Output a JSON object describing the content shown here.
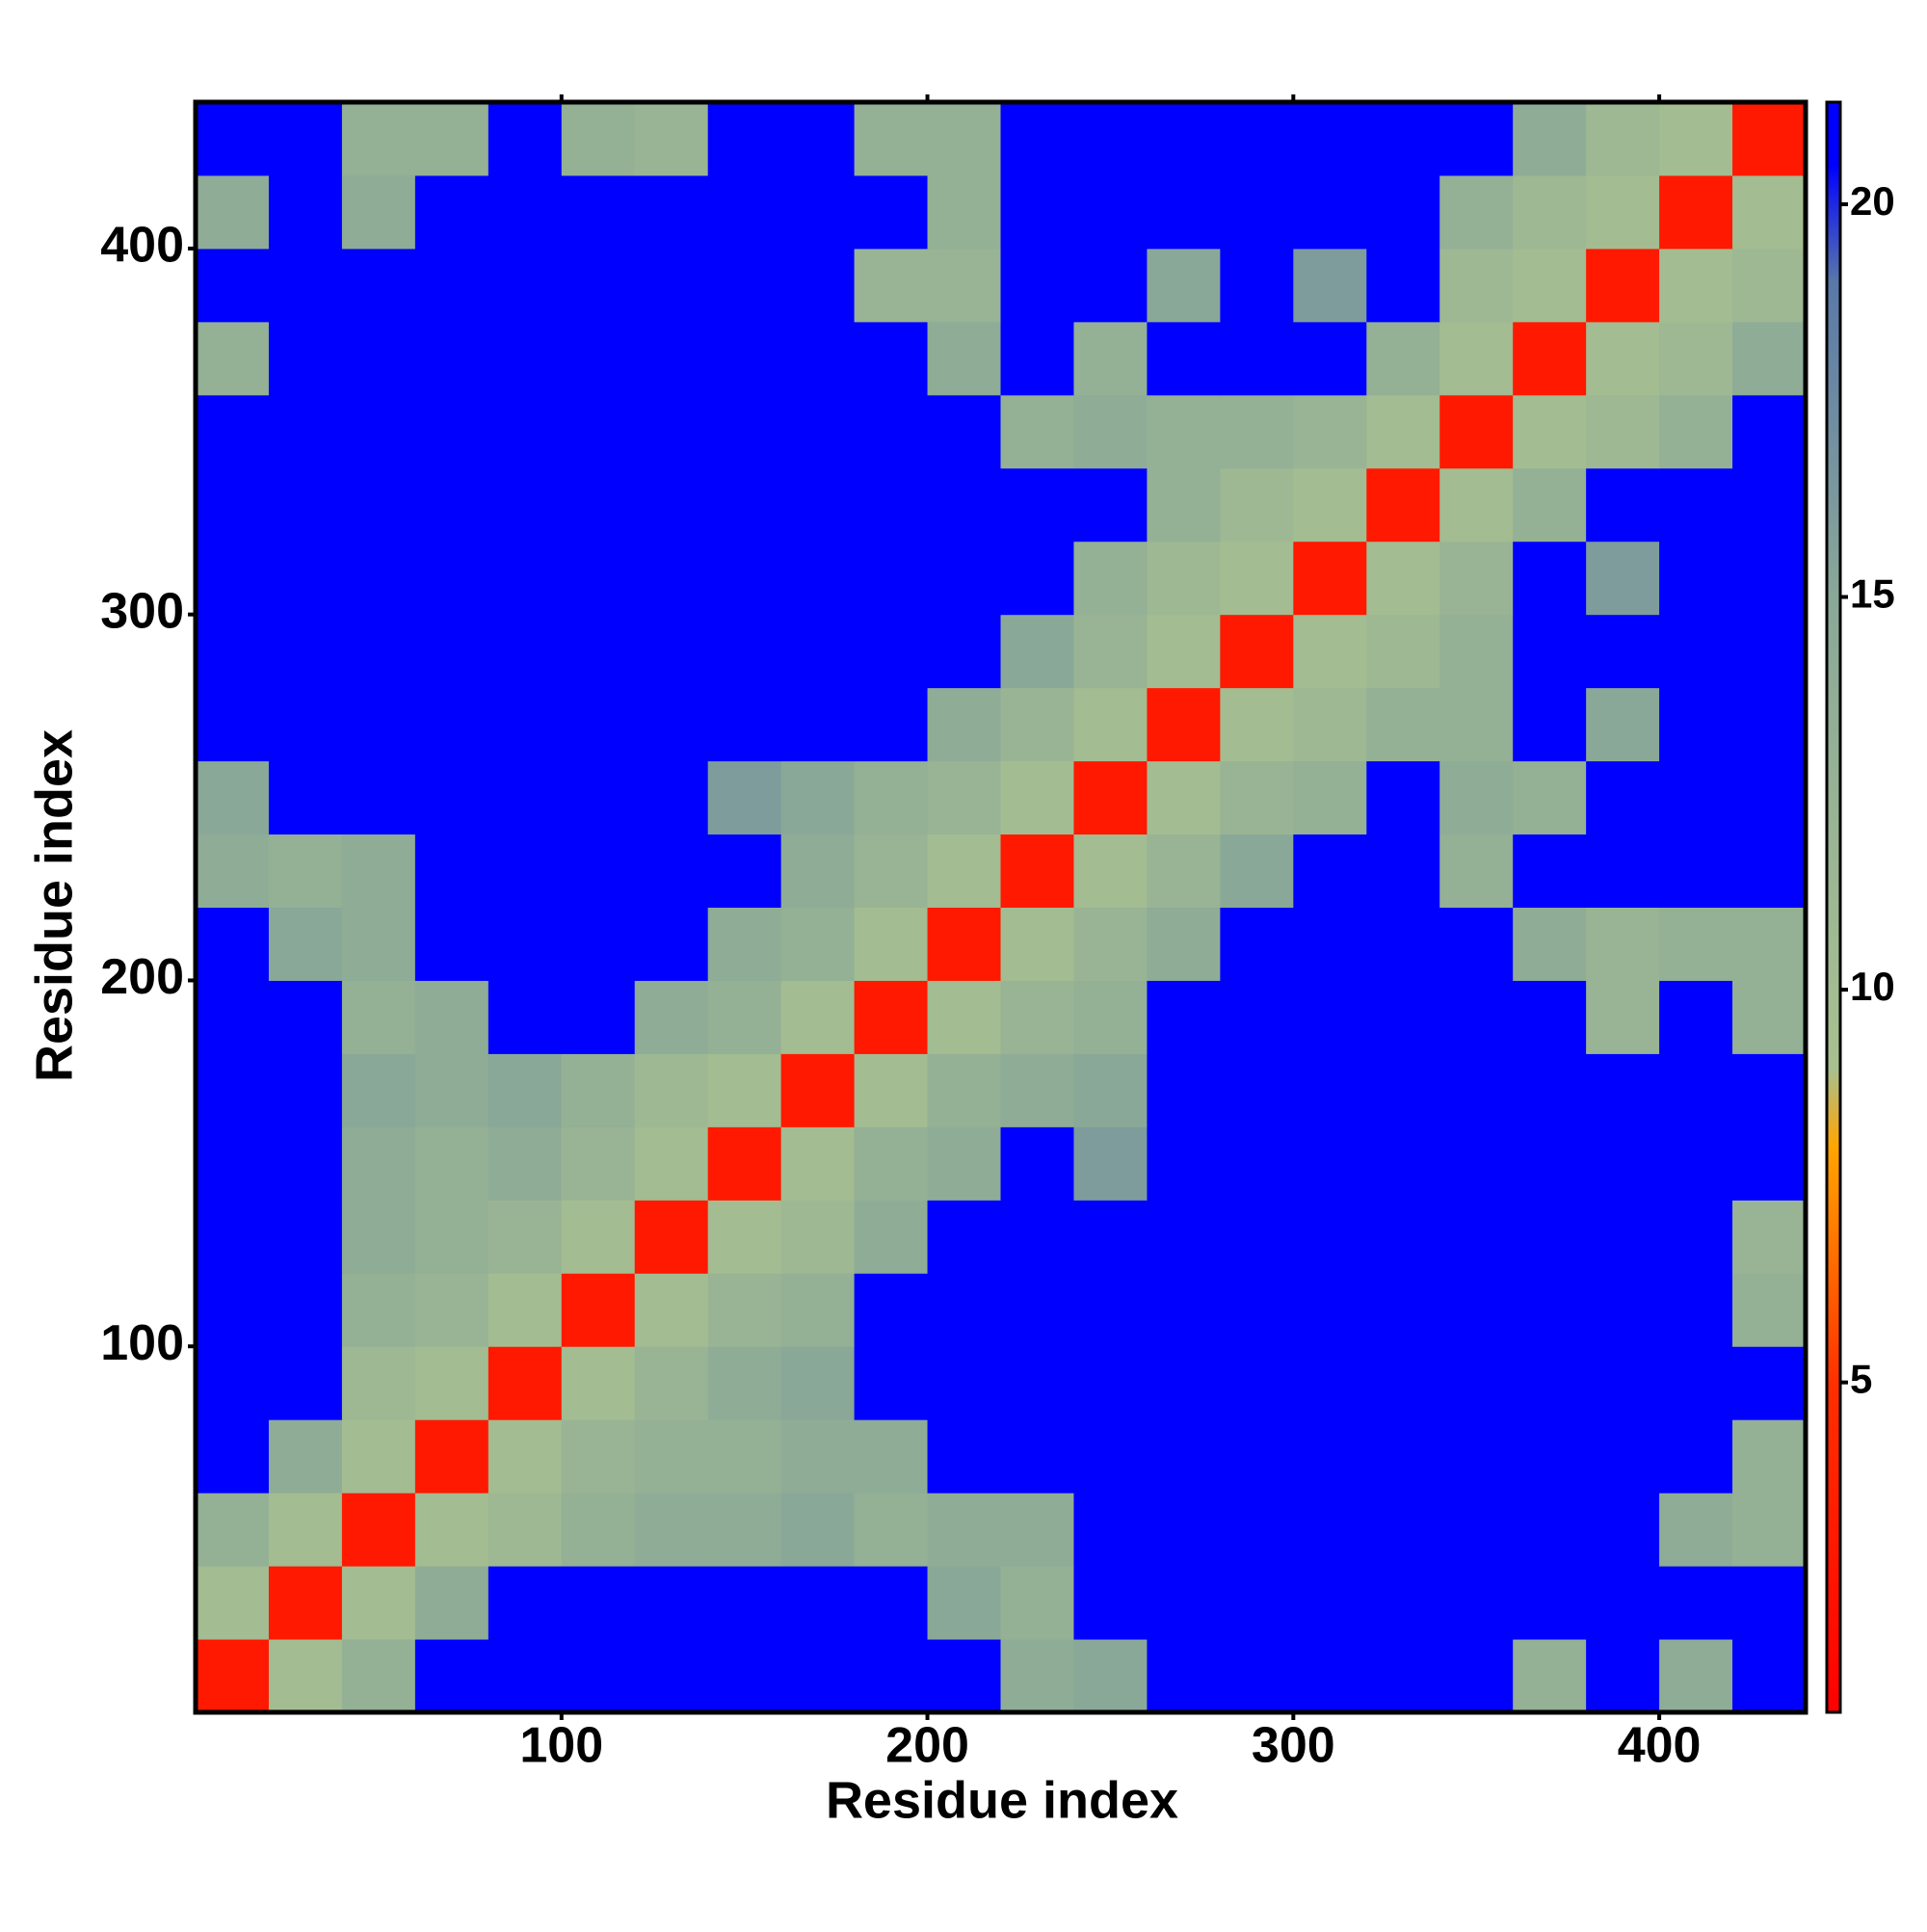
{
  "chart_data": {
    "type": "heatmap",
    "x_label": "Residue index",
    "y_label": "Residue index",
    "x": [
      10,
      30,
      50,
      70,
      90,
      110,
      130,
      150,
      170,
      190,
      210,
      230,
      250,
      270,
      290,
      310,
      330,
      350,
      370,
      390,
      410,
      430
    ],
    "y": [
      10,
      30,
      50,
      70,
      90,
      110,
      130,
      150,
      170,
      190,
      210,
      230,
      250,
      270,
      290,
      310,
      330,
      350,
      370,
      390,
      410,
      430
    ],
    "values": [
      [
        3,
        10,
        13,
        21,
        21,
        21,
        21,
        21,
        21,
        21,
        21,
        14,
        15,
        21,
        21,
        21,
        21,
        21,
        13,
        21,
        14,
        21
      ],
      [
        10,
        3,
        10,
        14,
        21,
        21,
        21,
        21,
        21,
        21,
        15,
        13,
        21,
        21,
        21,
        21,
        21,
        21,
        21,
        21,
        21,
        21
      ],
      [
        13,
        10,
        3,
        10,
        11,
        13,
        14,
        14,
        15,
        13,
        14,
        14,
        21,
        21,
        21,
        21,
        21,
        21,
        21,
        21,
        14,
        13
      ],
      [
        21,
        14,
        10,
        3,
        10,
        12,
        13,
        13,
        14,
        14,
        21,
        21,
        21,
        21,
        21,
        21,
        21,
        21,
        21,
        21,
        21,
        13
      ],
      [
        21,
        21,
        11,
        10,
        3,
        10,
        12,
        14,
        15,
        21,
        21,
        21,
        21,
        21,
        21,
        21,
        21,
        21,
        21,
        21,
        21,
        21
      ],
      [
        21,
        21,
        13,
        12,
        10,
        3,
        10,
        12,
        13,
        21,
        21,
        21,
        21,
        21,
        21,
        21,
        21,
        21,
        21,
        21,
        21,
        13
      ],
      [
        21,
        21,
        14,
        13,
        12,
        10,
        3,
        10,
        11,
        14,
        21,
        21,
        21,
        21,
        21,
        21,
        21,
        21,
        21,
        21,
        21,
        12
      ],
      [
        21,
        21,
        14,
        13,
        14,
        12,
        10,
        3,
        10,
        13,
        14,
        21,
        16,
        21,
        21,
        21,
        21,
        21,
        21,
        21,
        21,
        21
      ],
      [
        21,
        21,
        15,
        14,
        15,
        13,
        11,
        10,
        3,
        10,
        13,
        14,
        15,
        21,
        21,
        21,
        21,
        21,
        21,
        21,
        21,
        21
      ],
      [
        21,
        21,
        13,
        14,
        21,
        21,
        14,
        13,
        10,
        3,
        10,
        12,
        13,
        21,
        21,
        21,
        21,
        21,
        21,
        12,
        21,
        13
      ],
      [
        21,
        15,
        14,
        21,
        21,
        21,
        21,
        14,
        13,
        10,
        3,
        10,
        12,
        14,
        21,
        21,
        21,
        21,
        14,
        12,
        13,
        13
      ],
      [
        14,
        13,
        14,
        21,
        21,
        21,
        21,
        21,
        14,
        12,
        10,
        3,
        10,
        12,
        15,
        21,
        21,
        13,
        21,
        21,
        21,
        21
      ],
      [
        15,
        21,
        21,
        21,
        21,
        21,
        21,
        16,
        15,
        13,
        12,
        10,
        3,
        10,
        12,
        13,
        21,
        14,
        13,
        21,
        21,
        21
      ],
      [
        21,
        21,
        21,
        21,
        21,
        21,
        21,
        21,
        21,
        21,
        14,
        12,
        10,
        3,
        10,
        11,
        13,
        13,
        21,
        15,
        21,
        21
      ],
      [
        21,
        21,
        21,
        21,
        21,
        21,
        21,
        21,
        21,
        21,
        21,
        15,
        12,
        10,
        3,
        10,
        11,
        13,
        21,
        21,
        21,
        21
      ],
      [
        21,
        21,
        21,
        21,
        21,
        21,
        21,
        21,
        21,
        21,
        21,
        21,
        13,
        11,
        10,
        3,
        10,
        12,
        21,
        16,
        21,
        21
      ],
      [
        21,
        21,
        21,
        21,
        21,
        21,
        21,
        21,
        21,
        21,
        21,
        21,
        21,
        13,
        11,
        10,
        3,
        10,
        13,
        21,
        21,
        21
      ],
      [
        21,
        21,
        21,
        21,
        21,
        21,
        21,
        21,
        21,
        21,
        21,
        13,
        14,
        13,
        13,
        12,
        10,
        3,
        10,
        11,
        13,
        21
      ],
      [
        13,
        21,
        21,
        21,
        21,
        21,
        21,
        21,
        21,
        21,
        14,
        21,
        13,
        21,
        21,
        21,
        13,
        10,
        3,
        10,
        11,
        14
      ],
      [
        21,
        21,
        21,
        21,
        21,
        21,
        21,
        21,
        21,
        12,
        12,
        21,
        21,
        15,
        21,
        16,
        21,
        11,
        10,
        3,
        10,
        11
      ],
      [
        14,
        21,
        14,
        21,
        21,
        21,
        21,
        21,
        21,
        21,
        13,
        21,
        21,
        21,
        21,
        21,
        21,
        13,
        11,
        10,
        3,
        10
      ],
      [
        21,
        21,
        13,
        13,
        21,
        13,
        12,
        21,
        21,
        13,
        13,
        21,
        21,
        21,
        21,
        21,
        21,
        21,
        14,
        11,
        10,
        3
      ]
    ],
    "xlim": [
      0,
      440
    ],
    "ylim": [
      0,
      440
    ],
    "xticks": [
      100,
      200,
      300,
      400
    ],
    "yticks": [
      100,
      200,
      300,
      400
    ],
    "colorbar": {
      "lim": [
        0.8,
        21.3
      ],
      "ticks": [
        5,
        10,
        15,
        20
      ]
    },
    "colorscale": [
      [
        0.8,
        "#ff0000"
      ],
      [
        5,
        "#ff3000"
      ],
      [
        8,
        "#ffa500"
      ],
      [
        9,
        "#a8c090"
      ],
      [
        15,
        "#8aa898"
      ],
      [
        19,
        "#5a78a8"
      ],
      [
        20.5,
        "#0000ff"
      ],
      [
        21.3,
        "#0000ff"
      ]
    ]
  }
}
